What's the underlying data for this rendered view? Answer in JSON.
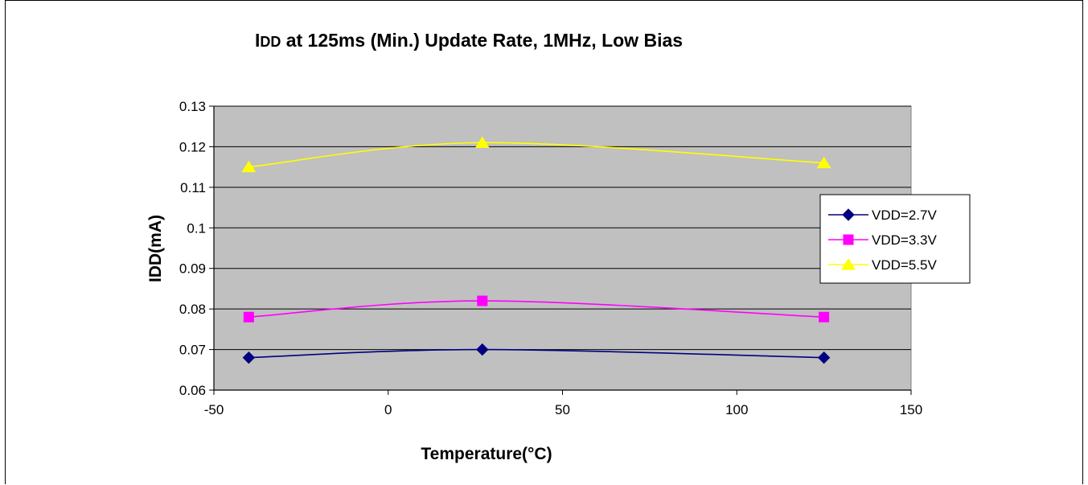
{
  "chart_data": {
    "type": "line",
    "title_prefix": "I",
    "title_sub": "DD",
    "title_rest": " at 125ms (Min.) Update Rate, 1MHz, Low Bias",
    "xlabel": "Temperature(°C)",
    "ylabel": "IDD(mA)",
    "xlim": [
      -50,
      150
    ],
    "ylim": [
      0.06,
      0.13
    ],
    "xticks": [
      -50,
      0,
      50,
      100,
      150
    ],
    "xtick_labels": [
      "-50",
      "0",
      "50",
      "100",
      "150"
    ],
    "yticks": [
      0.06,
      0.07,
      0.08,
      0.09,
      0.1,
      0.11,
      0.12,
      0.13
    ],
    "ytick_labels": [
      "0.06",
      "0.07",
      "0.08",
      "0.09",
      "0.1",
      "0.11",
      "0.12",
      "0.13"
    ],
    "grid": "horizontal",
    "plot_background": "#c0c0c0",
    "legend_position": "right",
    "x": [
      -40,
      27,
      125
    ],
    "series": [
      {
        "name": "VDD=2.7V",
        "values": [
          0.068,
          0.07,
          0.068
        ],
        "color": "#000080",
        "marker": "diamond"
      },
      {
        "name": "VDD=3.3V",
        "values": [
          0.078,
          0.082,
          0.078
        ],
        "color": "#ff00ff",
        "marker": "square"
      },
      {
        "name": "VDD=5.5V",
        "values": [
          0.115,
          0.121,
          0.116
        ],
        "color": "#ffff00",
        "marker": "triangle"
      }
    ]
  }
}
